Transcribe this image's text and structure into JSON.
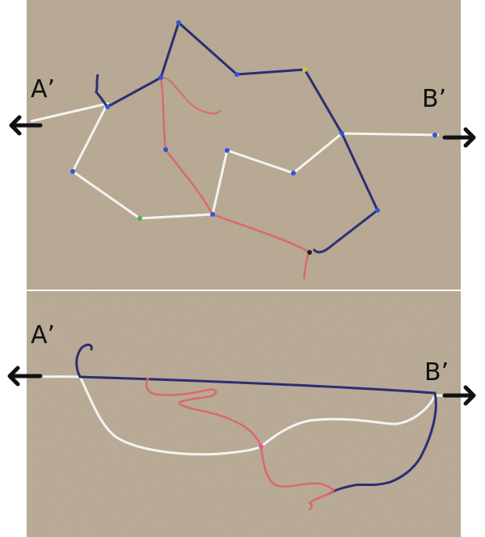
{
  "panels": [
    {
      "name": "top-photo",
      "label_left": "A’",
      "label_right": "B’"
    },
    {
      "name": "bottom-photo",
      "label_left": "A’",
      "label_right": "B’"
    }
  ],
  "colors": {
    "cardboard": "#b7a892",
    "white_string": "#f4f4f2",
    "blue_string": "#2b2f72",
    "red_string": "#d86a6a",
    "pin": "#2f56d6",
    "arrow": "#111111"
  },
  "icons": {
    "arrow_left": "arrow-left-icon",
    "arrow_right": "arrow-right-icon",
    "pin": "pin-icon"
  }
}
